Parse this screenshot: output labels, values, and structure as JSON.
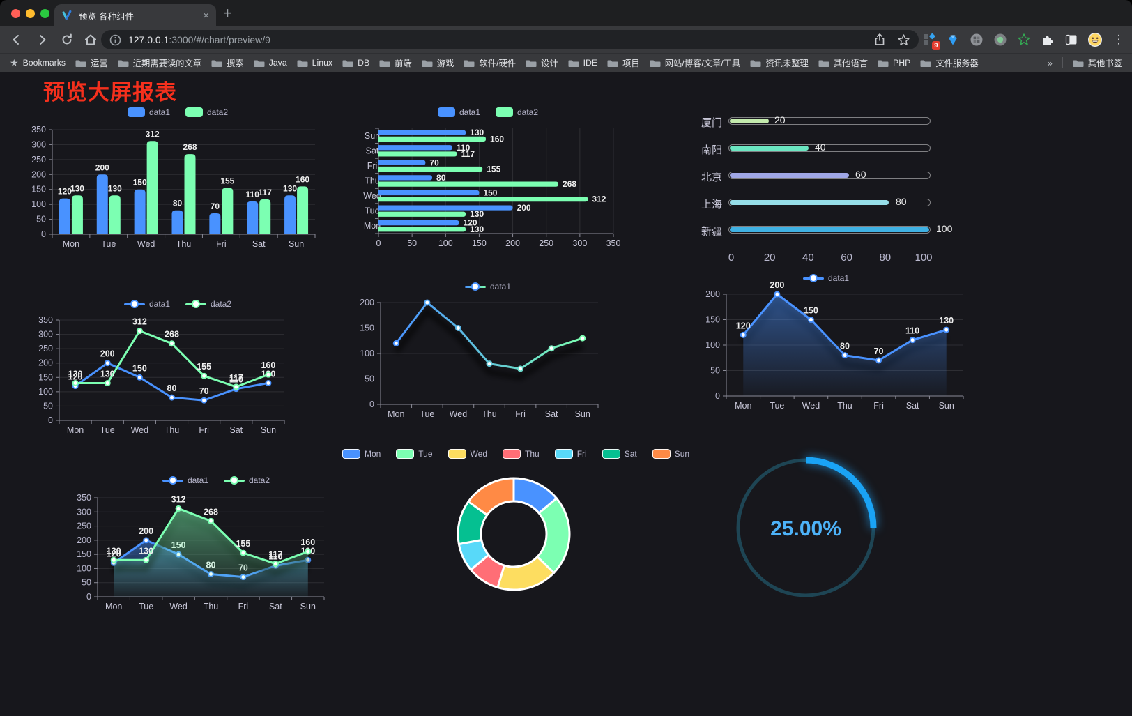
{
  "browser": {
    "tab": {
      "title": "预览-各种组件",
      "close_label": "×",
      "new_tab_label": "+"
    },
    "address": {
      "host": "127.0.0.1",
      "path": ":3000/#/chart/preview/9"
    },
    "extensions": {
      "badge": "9"
    },
    "bookmarks": {
      "star_label": "Bookmarks",
      "items": [
        "运营",
        "近期需要读的文章",
        "搜索",
        "Java",
        "Linux",
        "DB",
        "前端",
        "游戏",
        "软件/硬件",
        "设计",
        "IDE",
        "项目",
        "网站/博客/文章/工具",
        "资讯未整理",
        "其他语言",
        "PHP",
        "文件服务器"
      ],
      "overflow": "»",
      "other": "其他书签"
    }
  },
  "page": {
    "title": "预览大屏报表"
  },
  "colors": {
    "data1": "#4992ff",
    "data2": "#7cffb2",
    "axis_text": "#b9b8ce",
    "title_red": "#f5301d",
    "gauge_blue": "#1aa3f5"
  },
  "chart_data": [
    {
      "id": "grouped-bar",
      "type": "bar",
      "categories": [
        "Mon",
        "Tue",
        "Wed",
        "Thu",
        "Fri",
        "Sat",
        "Sun"
      ],
      "series": [
        {
          "name": "data1",
          "color": "#4992ff",
          "values": [
            120,
            200,
            150,
            80,
            70,
            110,
            130
          ]
        },
        {
          "name": "data2",
          "color": "#7cffb2",
          "values": [
            130,
            130,
            312,
            268,
            155,
            117,
            160
          ]
        }
      ],
      "ylim": [
        0,
        350
      ],
      "ytick_step": 50,
      "grid": true,
      "legend_position": "top"
    },
    {
      "id": "horizontal-bar",
      "type": "bar-horizontal",
      "categories": [
        "Mon",
        "Tue",
        "Wed",
        "Thu",
        "Fri",
        "Sat",
        "Sun"
      ],
      "series": [
        {
          "name": "data1",
          "color": "#4992ff",
          "values": [
            120,
            200,
            150,
            80,
            70,
            110,
            130
          ]
        },
        {
          "name": "data2",
          "color": "#7cffb2",
          "values": [
            130,
            130,
            312,
            268,
            155,
            117,
            160
          ]
        }
      ],
      "xlim": [
        0,
        350
      ],
      "xtick_step": 50,
      "grid": true,
      "legend_position": "top"
    },
    {
      "id": "city-progress",
      "type": "progress-bars",
      "categories": [
        "厦门",
        "南阳",
        "北京",
        "上海",
        "新疆"
      ],
      "values": [
        20,
        40,
        60,
        80,
        100
      ],
      "colors": [
        "#c4ebad",
        "#6be6c1",
        "#a0a7e6",
        "#96dee8",
        "#3fb1e3"
      ],
      "xlim": [
        0,
        100
      ],
      "xticks": [
        0,
        20,
        40,
        60,
        80,
        100
      ]
    },
    {
      "id": "two-line",
      "type": "line",
      "categories": [
        "Mon",
        "Tue",
        "Wed",
        "Thu",
        "Fri",
        "Sat",
        "Sun"
      ],
      "series": [
        {
          "name": "data1",
          "color": "#4992ff",
          "values": [
            120,
            200,
            150,
            80,
            70,
            110,
            130
          ],
          "labels": true
        },
        {
          "name": "data2",
          "color": "#7cffb2",
          "values": [
            130,
            130,
            312,
            268,
            155,
            117,
            160
          ],
          "labels": true
        }
      ],
      "ylim": [
        0,
        350
      ],
      "ytick_step": 50,
      "grid": true,
      "legend_position": "top"
    },
    {
      "id": "gradient-line",
      "type": "line",
      "categories": [
        "Mon",
        "Tue",
        "Wed",
        "Thu",
        "Fri",
        "Sat",
        "Sun"
      ],
      "series": [
        {
          "name": "data1",
          "gradient": [
            "#4992ff",
            "#7cffb2"
          ],
          "values": [
            120,
            200,
            150,
            80,
            70,
            110,
            130
          ],
          "labels": false
        }
      ],
      "ylim": [
        0,
        200
      ],
      "ytick_step": 50,
      "grid": true,
      "shadow": true,
      "legend_position": "top"
    },
    {
      "id": "area-line",
      "type": "area",
      "categories": [
        "Mon",
        "Tue",
        "Wed",
        "Thu",
        "Fri",
        "Sat",
        "Sun"
      ],
      "series": [
        {
          "name": "data1",
          "color": "#4992ff",
          "values": [
            120,
            200,
            150,
            80,
            70,
            110,
            130
          ],
          "labels": true,
          "area": true
        }
      ],
      "ylim": [
        0,
        200
      ],
      "ytick_step": 50,
      "grid": true,
      "shadow": true,
      "legend_position": "top"
    },
    {
      "id": "two-area",
      "type": "area",
      "categories": [
        "Mon",
        "Tue",
        "Wed",
        "Thu",
        "Fri",
        "Sat",
        "Sun"
      ],
      "series": [
        {
          "name": "data1",
          "color": "#4992ff",
          "values": [
            120,
            200,
            150,
            80,
            70,
            110,
            130
          ],
          "labels": true,
          "area": true
        },
        {
          "name": "data2",
          "color": "#7cffb2",
          "values": [
            130,
            130,
            312,
            268,
            155,
            117,
            160
          ],
          "labels": true,
          "area": true
        }
      ],
      "ylim": [
        0,
        350
      ],
      "ytick_step": 50,
      "grid": true,
      "shadow": true,
      "legend_position": "top"
    },
    {
      "id": "weekday-pie",
      "type": "pie",
      "shape": "doughnut",
      "categories": [
        "Mon",
        "Tue",
        "Wed",
        "Thu",
        "Fri",
        "Sat",
        "Sun"
      ],
      "values": [
        120,
        200,
        150,
        80,
        70,
        110,
        130
      ],
      "colors": [
        "#4992ff",
        "#7cffb2",
        "#fddd60",
        "#ff6e76",
        "#58d9f9",
        "#05c091",
        "#ff8a45"
      ],
      "legend_position": "top"
    },
    {
      "id": "percent-gauge",
      "type": "gauge",
      "value": 25,
      "max": 100,
      "label": "25.00%",
      "color": "#1aa3f5"
    }
  ]
}
